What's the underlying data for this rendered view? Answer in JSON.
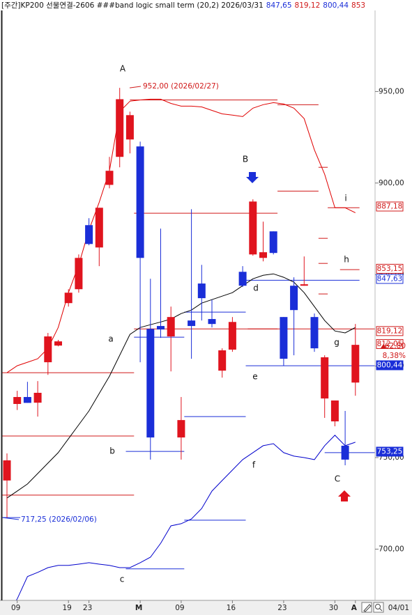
{
  "chart_data": {
    "type": "candlestick",
    "title": "[주간]KP200 선물연결-2606 ###band logic small term  (20,2) 2026/03/31",
    "title_values": [
      {
        "label": "847,65",
        "value": 847.65,
        "color": "#1a2ed8"
      },
      {
        "label": "819,12",
        "value": 819.12,
        "color": "#d01818"
      },
      {
        "label": "800,44",
        "value": 800.44,
        "color": "#1a2ed8"
      },
      {
        "label": "853",
        "value": 853,
        "color": "#d01818"
      }
    ],
    "categories": [
      null,
      "09",
      null,
      null,
      null,
      null,
      "19",
      null,
      "23",
      null,
      null,
      null,
      null,
      "M",
      null,
      null,
      null,
      "09",
      null,
      null,
      null,
      null,
      "16",
      null,
      null,
      null,
      null,
      "23",
      null,
      null,
      null,
      null,
      "30",
      null,
      "A"
    ],
    "date_label": "04/01",
    "open": [
      737.5,
      779.3,
      783.1,
      780,
      802.1,
      811.2,
      834.4,
      842,
      877,
      864.8,
      899,
      914.3,
      923.8,
      920,
      820.3,
      821.9,
      816.2,
      761,
      824.9,
      845.1,
      825.7,
      797.5,
      809,
      851.5,
      861,
      859.1,
      873.6,
      826.8,
      843.9,
      843.9,
      826.8,
      782.3,
      769.8,
      756.5,
      791
    ],
    "high": [
      752.3,
      786.5,
      791.4,
      791.8,
      818.1,
      814.3,
      842,
      861,
      880.8,
      886.5,
      914.3,
      952,
      939,
      922.6,
      847.7,
      875.1,
      832.5,
      783.1,
      885.7,
      855.3,
      836.3,
      809.7,
      826.8,
      854.6,
      891.1,
      878.9,
      873.6,
      826.8,
      848.5,
      859.9,
      828.7,
      805.9,
      781.2,
      775.5,
      823
    ],
    "low": [
      717.25,
      776,
      779.9,
      772.4,
      795.2,
      810.8,
      832.5,
      840.1,
      866,
      854.6,
      897.1,
      908.6,
      916.2,
      802.1,
      748.9,
      815.4,
      797.1,
      748.9,
      804,
      824.9,
      821.1,
      793.7,
      807.8,
      843.2,
      860.3,
      857.2,
      861,
      800.2,
      805.9,
      843.9,
      807.8,
      771.7,
      767.1,
      745.8,
      783.8
    ],
    "close": [
      748.5,
      783.1,
      779.9,
      785.4,
      816.2,
      813.5,
      840.1,
      859.1,
      866.7,
      886.5,
      906.7,
      945.8,
      937.1,
      859.1,
      761,
      820,
      826.8,
      770.5,
      821.9,
      837.1,
      823,
      808.6,
      824.1,
      843.9,
      889.9,
      862.2,
      861.8,
      804,
      830.6,
      844.7,
      809.7,
      804.8,
      781.2,
      748.9,
      811.6
    ],
    "up_color": "#e0141e",
    "down_color": "#1a2ed8",
    "series": [
      {
        "color": "#e00000",
        "values": [
          796.4,
          800.2,
          802.1,
          804,
          809.7,
          821.1,
          840.1,
          855.3,
          874.3,
          889.5,
          906.7,
          939,
          944.7,
          945.4,
          945.8,
          945.8,
          943.5,
          942,
          942,
          941.6,
          939.7,
          937.8,
          937.1,
          936.3,
          940.9,
          942.8,
          943.9,
          943.2,
          940.9,
          935.2,
          918.1,
          904.8,
          886.5,
          886.5,
          883.8
        ]
      },
      {
        "color": "#000000",
        "values": [
          727.9,
          731.7,
          735.6,
          741.3,
          747,
          752.7,
          760.3,
          767.9,
          775.5,
          785,
          794.5,
          805.9,
          817.3,
          821.1,
          822.6,
          824.1,
          825.7,
          828.7,
          830.6,
          834.4,
          836.3,
          838.2,
          840.1,
          843.9,
          847.7,
          849.6,
          850.4,
          848.5,
          845.8,
          840.1,
          832.5,
          824.9,
          819.2,
          818.1,
          821.1
        ]
      },
      {
        "color": "#0000cc",
        "values": [
          665.2,
          672.8,
          685,
          687.3,
          689.9,
          691.1,
          691.1,
          691.8,
          692.6,
          691.8,
          691.1,
          689.9,
          689.9,
          692.6,
          695.6,
          703.2,
          712.7,
          713.9,
          716.5,
          722.2,
          731.7,
          737.5,
          743.2,
          748.9,
          752.7,
          756.5,
          757.6,
          752.7,
          750.8,
          750,
          748.9,
          756.5,
          762.2,
          756.5,
          758.4
        ]
      }
    ],
    "levels": [
      {
        "value": 796.4,
        "start": -0.7,
        "end": 12.4,
        "color": "#d01818"
      },
      {
        "value": 761.8,
        "start": -0.7,
        "end": 12.4,
        "color": "#d01818"
      },
      {
        "value": 729.5,
        "start": -0.7,
        "end": 12.4,
        "color": "#d01818"
      },
      {
        "value": 945.4,
        "start": 12,
        "end": 26.4,
        "color": "#d01818"
      },
      {
        "value": 942.8,
        "start": 26.4,
        "end": 30.4,
        "color": "#d01818"
      },
      {
        "value": 883.5,
        "start": 12.4,
        "end": 26.4,
        "color": "#d01818"
      },
      {
        "value": 820.3,
        "start": 12.4,
        "end": 26.4,
        "color": "#d01818"
      },
      {
        "value": 820.3,
        "start": 23.5,
        "end": 36.1,
        "color": "#d01818"
      },
      {
        "value": 895.6,
        "start": 26.4,
        "end": 30.4,
        "color": "#d01818"
      },
      {
        "value": 908.6,
        "start": 30.4,
        "end": 31.3,
        "color": "#d01818"
      },
      {
        "value": 886.5,
        "start": 31.3,
        "end": 34.4,
        "color": "#d01818"
      },
      {
        "value": 869.8,
        "start": 30.4,
        "end": 31.3,
        "color": "#d01818"
      },
      {
        "value": 856.1,
        "start": 30.4,
        "end": 31.3,
        "color": "#d01818"
      },
      {
        "value": 852.7,
        "start": 32.5,
        "end": 34.4,
        "color": "#d01818"
      },
      {
        "value": 839.4,
        "start": 30.4,
        "end": 31.3,
        "color": "#d01818"
      },
      {
        "value": 815.8,
        "start": 12.4,
        "end": 17.3,
        "color": "#1a2ed8"
      },
      {
        "value": 772.4,
        "start": 17.3,
        "end": 23.3,
        "color": "#1a2ed8"
      },
      {
        "value": 753.4,
        "start": 11.6,
        "end": 17.3,
        "color": "#1a2ed8"
      },
      {
        "value": 715.8,
        "start": 17.3,
        "end": 23.3,
        "color": "#1a2ed8"
      },
      {
        "value": 689.2,
        "start": 11.6,
        "end": 17.3,
        "color": "#1a2ed8"
      },
      {
        "value": 829.5,
        "start": 17.3,
        "end": 23.3,
        "color": "#1a2ed8"
      },
      {
        "value": 846.9,
        "start": 23.3,
        "end": 34.4,
        "color": "#1a2ed8"
      },
      {
        "value": 800.2,
        "start": 23.3,
        "end": 36.1,
        "color": "#1a2ed8"
      },
      {
        "value": 752.7,
        "start": 31,
        "end": 36.1,
        "color": "#1a2ed8"
      },
      {
        "value": 717.25,
        "start": -0.7,
        "end": 1.3,
        "color": "#1a2ed8"
      }
    ],
    "ylim": [
      672,
      1000
    ],
    "yticks": [
      {
        "value": 700,
        "label": "700,00"
      },
      {
        "value": 750,
        "label": "750,00"
      },
      {
        "value": 800,
        "label": "800,00"
      },
      {
        "value": 850,
        "label": "850,00"
      },
      {
        "value": 900,
        "label": "900,00"
      },
      {
        "value": 950,
        "label": "950,00"
      }
    ],
    "extremes": [
      {
        "value": 952,
        "label": "952,00 (2026/02/27)",
        "color": "#d01818"
      },
      {
        "value": 717.25,
        "label": "717,25 (2026/02/06)",
        "color": "#1a2ed8"
      }
    ],
    "price_labels": [
      {
        "value": 887.18,
        "label": "887,18",
        "color": "#d01818",
        "filled": false
      },
      {
        "value": 853.15,
        "label": "853,15",
        "color": "#d01818",
        "filled": false
      },
      {
        "value": 847.63,
        "label": "847,63",
        "color": "#1a2ed8",
        "filled": false
      },
      {
        "value": 819.12,
        "label": "819,12",
        "color": "#d01818",
        "filled": false
      },
      {
        "value": 812.05,
        "label": "812,05",
        "color": "#d01818",
        "filled": false
      },
      {
        "value": 800.44,
        "label": "800,44",
        "color": "#1a2ed8",
        "filled": true
      },
      {
        "value": 753.25,
        "label": "753,25",
        "color": "#1a2ed8",
        "filled": true
      }
    ],
    "change": {
      "value": 62.8,
      "label": "62,80"
    },
    "change_pct": {
      "value": 8.38,
      "label": "8,38%"
    },
    "annotations": [
      "A",
      "B",
      "C",
      "a",
      "b",
      "c",
      "d",
      "e",
      "f",
      "g",
      "h",
      "i"
    ]
  }
}
